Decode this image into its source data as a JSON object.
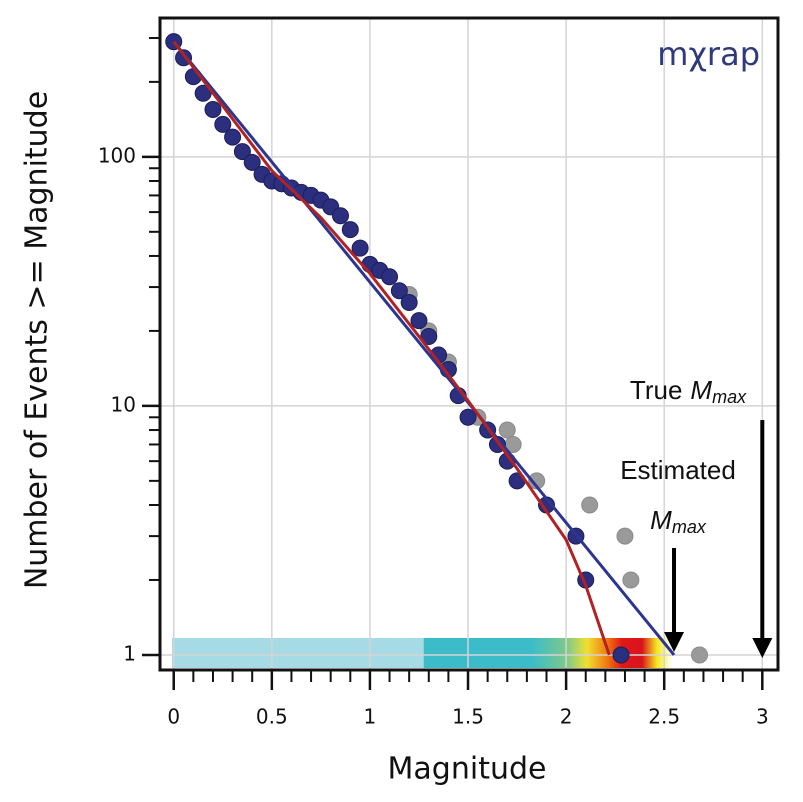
{
  "chart_data": {
    "type": "scatter",
    "xlabel": "Magnitude",
    "ylabel": "Number of Events >= Magnitude",
    "logo": "mχrap",
    "xlim": [
      -0.07,
      3.08
    ],
    "ylim": [
      0.87,
      361
    ],
    "log_y": true,
    "grid": true,
    "xticks": [
      0,
      0.5,
      1,
      1.5,
      2,
      2.5,
      3
    ],
    "xminor_ticks": [
      0.1,
      0.2,
      0.3,
      0.4,
      0.6,
      0.7,
      0.8,
      0.9,
      1.1,
      1.2,
      1.3,
      1.4,
      1.6,
      1.7,
      1.8,
      1.9,
      2.1,
      2.2,
      2.3,
      2.4,
      2.6,
      2.7,
      2.8,
      2.9
    ],
    "yticks": [
      1,
      10,
      100
    ],
    "yminor_ticks": [
      2,
      3,
      4,
      5,
      6,
      7,
      8,
      9,
      20,
      30,
      40,
      50,
      60,
      70,
      80,
      90,
      200,
      300
    ],
    "series": [
      {
        "color": "#9a9a9a",
        "style": "points",
        "x": [
          1.2,
          1.3,
          1.4,
          1.55,
          1.7,
          1.73,
          1.85,
          2.12,
          2.3,
          2.33,
          2.68
        ],
        "values": [
          28,
          20,
          15,
          9,
          8,
          7,
          5,
          4,
          3,
          2,
          1
        ]
      },
      {
        "color": "#2b2f7e",
        "style": "points",
        "x": [
          0,
          0.05,
          0.1,
          0.15,
          0.2,
          0.25,
          0.3,
          0.35,
          0.4,
          0.45,
          0.5,
          0.55,
          0.6,
          0.65,
          0.7,
          0.75,
          0.8,
          0.85,
          0.9,
          0.95,
          1.0,
          1.05,
          1.1,
          1.15,
          1.2,
          1.25,
          1.3,
          1.35,
          1.4,
          1.45,
          1.5,
          1.6,
          1.65,
          1.7,
          1.75,
          1.9,
          2.05,
          2.1,
          2.28
        ],
        "values": [
          290,
          250,
          210,
          180,
          155,
          135,
          120,
          105,
          95,
          85,
          80,
          78,
          75,
          72,
          70,
          67,
          63,
          58,
          51,
          43,
          37,
          35,
          33,
          29,
          26,
          22,
          19,
          16,
          14,
          11,
          9,
          8,
          7,
          6,
          5,
          4,
          3,
          2,
          1
        ]
      },
      {
        "color": "#2c3590",
        "style": "line",
        "x": [
          0,
          2.55
        ],
        "values": [
          290,
          1
        ]
      },
      {
        "color": "#b22222",
        "style": "line",
        "x": [
          0,
          0.25,
          0.5,
          0.75,
          1.0,
          1.25,
          1.5,
          1.75,
          2.0,
          2.1,
          2.22
        ],
        "values": [
          290,
          160,
          88,
          57,
          34,
          19,
          10.5,
          5.6,
          2.9,
          1.9,
          1
        ]
      }
    ],
    "annotations": [
      {
        "text": "True",
        "symbol": "M",
        "subscript": "max",
        "arrow_x": 3
      },
      {
        "text": "Estimated",
        "symbol": "M",
        "subscript": "max",
        "arrow_x": 2.55
      }
    ]
  }
}
